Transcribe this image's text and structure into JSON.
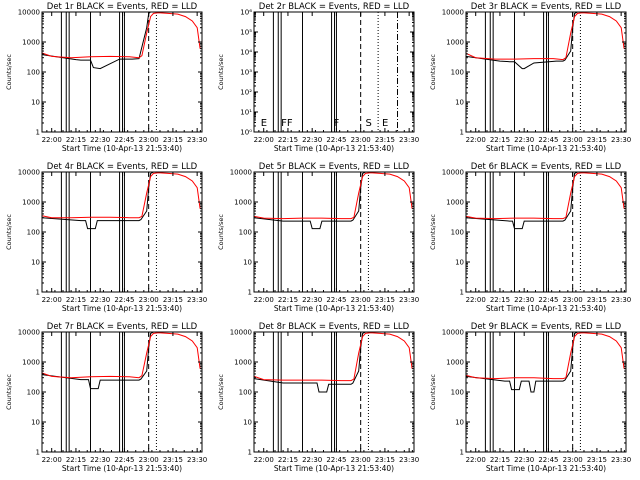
{
  "chart_data": [
    {
      "type": "line",
      "title": "Det 1r  BLACK = Events, RED = LLD",
      "xlabel": "Start Time (10-Apr-13 21:53:40)",
      "ylabel": "Counts/sec",
      "xlim": [
        21.9,
        23.55
      ],
      "ylim": [
        1,
        10000
      ],
      "xticks": [
        "22:00",
        "22:15",
        "22:30",
        "22:45",
        "23:00",
        "23:15",
        "23:30"
      ],
      "yticks": [
        "1",
        "10",
        "100",
        "1000",
        "10000"
      ],
      "grid": false,
      "series": [
        {
          "name": "Events",
          "color": "#000000",
          "x": [
            21.9,
            22.25,
            22.3,
            22.33,
            22.4,
            22.43,
            22.5,
            22.7,
            22.83,
            22.9,
            22.92,
            22.98,
            23.0,
            23.02,
            23.05
          ],
          "y": [
            380,
            260,
            250,
            250,
            250,
            140,
            130,
            270,
            270,
            280,
            500,
            3000,
            9000,
            10000,
            10000
          ]
        },
        {
          "name": "LLD",
          "color": "#ff0000",
          "x": [
            21.9,
            22.0,
            22.2,
            22.4,
            22.6,
            22.8,
            22.9,
            22.93,
            22.98,
            23.02,
            23.05,
            23.1,
            23.2,
            23.3,
            23.38,
            23.45,
            23.5,
            23.53
          ],
          "y": [
            430,
            330,
            300,
            320,
            330,
            320,
            300,
            350,
            2000,
            7000,
            9000,
            9500,
            9000,
            8500,
            7000,
            5000,
            3000,
            600
          ]
        }
      ],
      "solid_lines": [
        22.1,
        22.15,
        22.18,
        22.4,
        22.7,
        22.73,
        22.75
      ],
      "dashed_lines": [
        23.0
      ],
      "dotted_lines": [
        23.08
      ],
      "dashdot_lines": [],
      "annotations": []
    },
    {
      "type": "line",
      "title": "Det 2r  BLACK = Events, RED = LLD",
      "xlabel": "Start Time (10-Apr-13 21:53:40)",
      "ylabel": "Counts/sec",
      "xlim": [
        21.9,
        23.55
      ],
      "ylim": [
        1,
        1000000
      ],
      "xticks": [
        "22:00",
        "22:15",
        "22:30",
        "22:45",
        "23:00",
        "23:15",
        "23:30"
      ],
      "yticks": [
        "10⁰",
        "10¹",
        "10²",
        "10³",
        "10⁴",
        "10⁵",
        "10⁶"
      ],
      "grid": false,
      "series": [],
      "solid_lines": [
        22.1,
        22.15,
        22.18,
        22.4,
        22.7,
        22.73,
        22.75
      ],
      "dashed_lines": [
        23.0
      ],
      "dotted_lines": [
        23.18
      ],
      "dashdot_lines": [
        23.38
      ],
      "annotations": [
        {
          "text": "E",
          "x": 21.97
        },
        {
          "text": "FF",
          "x": 22.18
        },
        {
          "text": "F",
          "x": 22.72
        },
        {
          "text": "S",
          "x": 23.05
        },
        {
          "text": "E",
          "x": 23.22
        }
      ]
    },
    {
      "type": "line",
      "title": "Det 3r  BLACK = Events, RED = LLD",
      "xlabel": "Start Time (10-Apr-13 21:53:40)",
      "ylabel": "Counts/sec",
      "xlim": [
        21.9,
        23.55
      ],
      "ylim": [
        1,
        10000
      ],
      "xticks": [
        "22:00",
        "22:15",
        "22:30",
        "22:45",
        "23:00",
        "23:15",
        "23:30"
      ],
      "yticks": [
        "1",
        "10",
        "100",
        "1000",
        "10000"
      ],
      "grid": false,
      "series": [
        {
          "name": "Events",
          "color": "#000000",
          "x": [
            21.9,
            22.25,
            22.35,
            22.4,
            22.48,
            22.5,
            22.6,
            22.83,
            22.9,
            22.92,
            22.98,
            23.0,
            23.02,
            23.05
          ],
          "y": [
            330,
            230,
            220,
            220,
            130,
            130,
            200,
            230,
            230,
            250,
            500,
            3000,
            9000,
            10000
          ]
        },
        {
          "name": "LLD",
          "color": "#ff0000",
          "x": [
            21.9,
            22.0,
            22.2,
            22.4,
            22.6,
            22.8,
            22.9,
            22.93,
            22.98,
            23.02,
            23.05,
            23.1,
            23.2,
            23.3,
            23.38,
            23.45,
            23.5,
            23.53
          ],
          "y": [
            420,
            300,
            270,
            270,
            280,
            280,
            260,
            300,
            2000,
            7000,
            9000,
            9500,
            9000,
            8500,
            7000,
            5000,
            3000,
            600
          ]
        }
      ],
      "solid_lines": [
        22.1,
        22.15,
        22.18,
        22.4,
        22.7,
        22.73,
        22.75
      ],
      "dashed_lines": [
        23.0
      ],
      "dotted_lines": [
        23.08
      ],
      "dashdot_lines": [],
      "annotations": []
    },
    {
      "type": "line",
      "title": "Det 4r  BLACK = Events, RED = LLD",
      "xlabel": "Start Time (10-Apr-13 21:53:40)",
      "ylabel": "Counts/sec",
      "xlim": [
        21.9,
        23.55
      ],
      "ylim": [
        1,
        10000
      ],
      "xticks": [
        "22:00",
        "22:15",
        "22:30",
        "22:45",
        "23:00",
        "23:15",
        "23:30"
      ],
      "yticks": [
        "1",
        "10",
        "100",
        "1000",
        "10000"
      ],
      "grid": false,
      "series": [
        {
          "name": "Events",
          "color": "#000000",
          "x": [
            21.9,
            22.3,
            22.35,
            22.37,
            22.45,
            22.47,
            22.55,
            22.83,
            22.9,
            22.92,
            22.98,
            23.0,
            23.02,
            23.05
          ],
          "y": [
            300,
            240,
            240,
            130,
            130,
            240,
            240,
            240,
            240,
            260,
            500,
            3000,
            9000,
            10000
          ]
        },
        {
          "name": "LLD",
          "color": "#ff0000",
          "x": [
            21.9,
            22.0,
            22.2,
            22.4,
            22.6,
            22.8,
            22.9,
            22.93,
            22.98,
            23.02,
            23.05,
            23.1,
            23.2,
            23.3,
            23.38,
            23.45,
            23.5,
            23.53
          ],
          "y": [
            350,
            300,
            300,
            310,
            310,
            300,
            300,
            330,
            2000,
            7000,
            9000,
            9500,
            9000,
            8500,
            7000,
            5000,
            3000,
            600
          ]
        }
      ],
      "solid_lines": [
        22.1,
        22.15,
        22.18,
        22.4,
        22.7,
        22.73,
        22.75
      ],
      "dashed_lines": [
        23.0
      ],
      "dotted_lines": [
        23.08
      ],
      "dashdot_lines": [],
      "annotations": []
    },
    {
      "type": "line",
      "title": "Det 5r  BLACK = Events, RED = LLD",
      "xlabel": "Start Time (10-Apr-13 21:53:40)",
      "ylabel": "Counts/sec",
      "xlim": [
        21.9,
        23.55
      ],
      "ylim": [
        1,
        10000
      ],
      "xticks": [
        "22:00",
        "22:15",
        "22:30",
        "22:45",
        "23:00",
        "23:15",
        "23:30"
      ],
      "yticks": [
        "1",
        "10",
        "100",
        "1000",
        "10000"
      ],
      "grid": false,
      "series": [
        {
          "name": "Events",
          "color": "#000000",
          "x": [
            21.9,
            22.2,
            22.4,
            22.48,
            22.5,
            22.58,
            22.6,
            22.83,
            22.9,
            22.92,
            22.98,
            23.0,
            23.02,
            23.05
          ],
          "y": [
            300,
            230,
            230,
            230,
            130,
            130,
            230,
            230,
            230,
            250,
            500,
            3000,
            9000,
            10000
          ]
        },
        {
          "name": "LLD",
          "color": "#ff0000",
          "x": [
            21.9,
            22.0,
            22.2,
            22.4,
            22.6,
            22.8,
            22.9,
            22.93,
            22.98,
            23.02,
            23.05,
            23.1,
            23.2,
            23.3,
            23.38,
            23.45,
            23.5,
            23.53
          ],
          "y": [
            330,
            290,
            280,
            290,
            290,
            280,
            280,
            310,
            2000,
            7000,
            9000,
            9500,
            9000,
            8500,
            7000,
            5000,
            3000,
            600
          ]
        }
      ],
      "solid_lines": [
        22.1,
        22.15,
        22.18,
        22.4,
        22.7,
        22.73,
        22.75
      ],
      "dashed_lines": [
        23.0
      ],
      "dotted_lines": [
        23.08
      ],
      "dashdot_lines": [],
      "annotations": []
    },
    {
      "type": "line",
      "title": "Det 6r  BLACK = Events, RED = LLD",
      "xlabel": "Start Time (10-Apr-13 21:53:40)",
      "ylabel": "Counts/sec",
      "xlim": [
        21.9,
        23.55
      ],
      "ylim": [
        1,
        10000
      ],
      "xticks": [
        "22:00",
        "22:15",
        "22:30",
        "22:45",
        "23:00",
        "23:15",
        "23:30"
      ],
      "yticks": [
        "1",
        "10",
        "100",
        "1000",
        "10000"
      ],
      "grid": false,
      "series": [
        {
          "name": "Events",
          "color": "#000000",
          "x": [
            21.9,
            22.35,
            22.38,
            22.4,
            22.48,
            22.5,
            22.6,
            22.83,
            22.9,
            22.92,
            22.98,
            23.0,
            23.02,
            23.05
          ],
          "y": [
            300,
            230,
            230,
            130,
            130,
            230,
            230,
            230,
            230,
            250,
            500,
            3000,
            9000,
            10000
          ]
        },
        {
          "name": "LLD",
          "color": "#ff0000",
          "x": [
            21.9,
            22.0,
            22.2,
            22.4,
            22.6,
            22.8,
            22.9,
            22.93,
            22.98,
            23.02,
            23.05,
            23.1,
            23.2,
            23.3,
            23.38,
            23.45,
            23.5,
            23.53
          ],
          "y": [
            330,
            290,
            280,
            290,
            290,
            280,
            280,
            310,
            2000,
            7000,
            9000,
            9500,
            9000,
            8500,
            7000,
            5000,
            3000,
            600
          ]
        }
      ],
      "solid_lines": [
        22.1,
        22.15,
        22.18,
        22.4,
        22.7,
        22.73,
        22.75
      ],
      "dashed_lines": [
        23.0
      ],
      "dotted_lines": [
        23.08
      ],
      "dashdot_lines": [],
      "annotations": []
    },
    {
      "type": "line",
      "title": "Det 7r  BLACK = Events, RED = LLD",
      "xlabel": "Start Time (10-Apr-13 21:53:40)",
      "ylabel": "Counts/sec",
      "xlim": [
        21.9,
        23.55
      ],
      "ylim": [
        1,
        10000
      ],
      "xticks": [
        "22:00",
        "22:15",
        "22:30",
        "22:45",
        "23:00",
        "23:15",
        "23:30"
      ],
      "yticks": [
        "1",
        "10",
        "100",
        "1000",
        "10000"
      ],
      "grid": false,
      "series": [
        {
          "name": "Events",
          "color": "#000000",
          "x": [
            21.9,
            22.3,
            22.38,
            22.4,
            22.48,
            22.5,
            22.6,
            22.83,
            22.9,
            22.92,
            22.98,
            23.0,
            23.02,
            23.05
          ],
          "y": [
            380,
            260,
            260,
            130,
            130,
            250,
            250,
            250,
            250,
            270,
            500,
            3000,
            9000,
            10000
          ]
        },
        {
          "name": "LLD",
          "color": "#ff0000",
          "x": [
            21.9,
            22.0,
            22.2,
            22.4,
            22.6,
            22.8,
            22.9,
            22.93,
            22.98,
            23.02,
            23.05,
            23.1,
            23.2,
            23.3,
            23.38,
            23.45,
            23.5,
            23.53
          ],
          "y": [
            430,
            330,
            300,
            320,
            330,
            320,
            300,
            350,
            2000,
            7000,
            9000,
            9500,
            9000,
            8500,
            7000,
            5000,
            3000,
            600
          ]
        }
      ],
      "solid_lines": [
        22.1,
        22.15,
        22.18,
        22.4,
        22.7,
        22.73,
        22.75
      ],
      "dashed_lines": [
        23.0
      ],
      "dotted_lines": [
        23.08
      ],
      "dashdot_lines": [],
      "annotations": []
    },
    {
      "type": "line",
      "title": "Det 8r  BLACK = Events, RED = LLD",
      "xlabel": "Start Time (10-Apr-13 21:53:40)",
      "ylabel": "Counts/sec",
      "xlim": [
        21.9,
        23.55
      ],
      "ylim": [
        1,
        10000
      ],
      "xticks": [
        "22:00",
        "22:15",
        "22:30",
        "22:45",
        "23:00",
        "23:15",
        "23:30"
      ],
      "yticks": [
        "1",
        "10",
        "100",
        "1000",
        "10000"
      ],
      "grid": false,
      "series": [
        {
          "name": "Events",
          "color": "#000000",
          "x": [
            21.9,
            22.2,
            22.5,
            22.55,
            22.57,
            22.65,
            22.67,
            22.83,
            22.9,
            22.92,
            22.98,
            23.0,
            23.02,
            23.05
          ],
          "y": [
            280,
            200,
            200,
            200,
            100,
            100,
            180,
            180,
            180,
            200,
            500,
            3000,
            9000,
            10000
          ]
        },
        {
          "name": "LLD",
          "color": "#ff0000",
          "x": [
            21.9,
            22.0,
            22.2,
            22.4,
            22.6,
            22.8,
            22.9,
            22.93,
            22.98,
            23.02,
            23.05,
            23.1,
            23.2,
            23.3,
            23.38,
            23.45,
            23.5,
            23.53
          ],
          "y": [
            330,
            260,
            250,
            250,
            250,
            240,
            240,
            270,
            2000,
            7000,
            9000,
            9500,
            9000,
            8500,
            7000,
            5000,
            3000,
            600
          ]
        }
      ],
      "solid_lines": [
        22.1,
        22.15,
        22.18,
        22.4,
        22.7,
        22.73,
        22.75
      ],
      "dashed_lines": [
        23.0
      ],
      "dotted_lines": [
        23.08
      ],
      "dashdot_lines": [],
      "annotations": []
    },
    {
      "type": "line",
      "title": "Det 9r  BLACK = Events, RED = LLD",
      "xlabel": "Start Time (10-Apr-13 21:53:40)",
      "ylabel": "Counts/sec",
      "xlim": [
        21.9,
        23.55
      ],
      "ylim": [
        1,
        10000
      ],
      "xticks": [
        "22:00",
        "22:15",
        "22:30",
        "22:45",
        "23:00",
        "23:15",
        "23:30"
      ],
      "yticks": [
        "1",
        "10",
        "100",
        "1000",
        "10000"
      ],
      "grid": false,
      "series": [
        {
          "name": "Events",
          "color": "#000000",
          "x": [
            21.9,
            22.3,
            22.35,
            22.37,
            22.45,
            22.47,
            22.55,
            22.57,
            22.6,
            22.62,
            22.7,
            22.83,
            22.9,
            22.92,
            22.98,
            23.0,
            23.02,
            23.05
          ],
          "y": [
            330,
            230,
            230,
            120,
            120,
            230,
            230,
            100,
            100,
            230,
            230,
            230,
            230,
            250,
            500,
            3000,
            9000,
            10000
          ]
        },
        {
          "name": "LLD",
          "color": "#ff0000",
          "x": [
            21.9,
            22.0,
            22.2,
            22.4,
            22.6,
            22.8,
            22.9,
            22.93,
            22.98,
            23.02,
            23.05,
            23.1,
            23.2,
            23.3,
            23.38,
            23.45,
            23.5,
            23.53
          ],
          "y": [
            360,
            300,
            280,
            300,
            300,
            280,
            280,
            300,
            2000,
            7000,
            9000,
            9500,
            9000,
            8500,
            7000,
            5000,
            3000,
            600
          ]
        }
      ],
      "solid_lines": [
        22.1,
        22.15,
        22.18,
        22.4,
        22.7,
        22.73,
        22.75
      ],
      "dashed_lines": [
        23.0
      ],
      "dotted_lines": [
        23.08
      ],
      "dashdot_lines": [],
      "annotations": []
    }
  ]
}
